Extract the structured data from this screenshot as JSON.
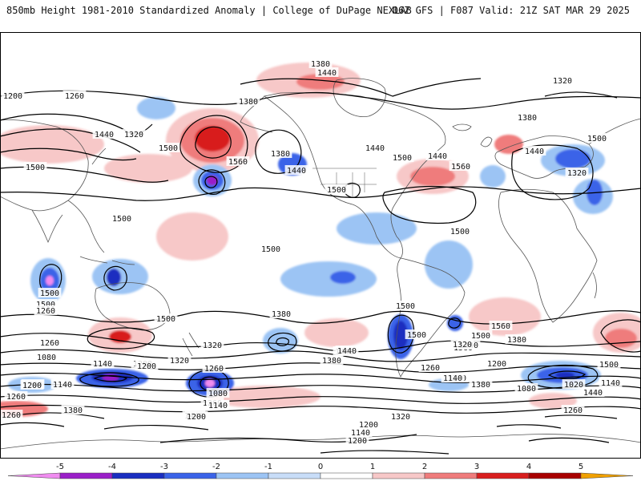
{
  "header": {
    "left": "850mb Height 1981-2010 Standardized Anomaly | College of DuPage NEXLAB",
    "right": "06Z GFS | F087 Valid: 21Z SAT MAR 29 2025"
  },
  "colorbar": {
    "ticks": [
      "-5",
      "-4",
      "-3",
      "-2",
      "-1",
      "0",
      "1",
      "2",
      "3",
      "4",
      "5"
    ],
    "colors": [
      "#f08cf0",
      "#9a1fc8",
      "#1a2ec0",
      "#3a63e8",
      "#9cc4f4",
      "#c8ddf8",
      "#ffffff",
      "#f7c8c8",
      "#ef7c7c",
      "#d81e1e",
      "#a80000",
      "#f0a000"
    ]
  },
  "contour_labels": [
    {
      "text": "1380"
    },
    {
      "text": "1440"
    },
    {
      "text": "1320"
    },
    {
      "text": "1200"
    },
    {
      "text": "1260"
    },
    {
      "text": "1380"
    },
    {
      "text": "1320"
    },
    {
      "text": "1440"
    },
    {
      "text": "1500"
    },
    {
      "text": "1560"
    },
    {
      "text": "1380"
    },
    {
      "text": "1440"
    },
    {
      "text": "1440"
    },
    {
      "text": "1500"
    },
    {
      "text": "1440"
    },
    {
      "text": "1560"
    },
    {
      "text": "1500"
    },
    {
      "text": "1380"
    },
    {
      "text": "1320"
    },
    {
      "text": "1500"
    },
    {
      "text": "1440"
    },
    {
      "text": "1500"
    },
    {
      "text": "1500"
    },
    {
      "text": "1500"
    },
    {
      "text": "1500"
    },
    {
      "text": "1500"
    },
    {
      "text": "1500"
    },
    {
      "text": "1500"
    },
    {
      "text": "1500"
    },
    {
      "text": "1560"
    },
    {
      "text": "1440"
    },
    {
      "text": "1500"
    },
    {
      "text": "1380"
    },
    {
      "text": "1260"
    },
    {
      "text": "1320"
    },
    {
      "text": "1260"
    },
    {
      "text": "1200"
    },
    {
      "text": "1140"
    },
    {
      "text": "1080"
    },
    {
      "text": "1140"
    },
    {
      "text": "1200"
    },
    {
      "text": "1320"
    },
    {
      "text": "1380"
    },
    {
      "text": "1440"
    },
    {
      "text": "1500"
    },
    {
      "text": "1560"
    },
    {
      "text": "1440"
    },
    {
      "text": "1380"
    },
    {
      "text": "1320"
    },
    {
      "text": "1260"
    },
    {
      "text": "1200"
    },
    {
      "text": "1260"
    },
    {
      "text": "1140"
    },
    {
      "text": "1080"
    },
    {
      "text": "1140"
    },
    {
      "text": "1200"
    },
    {
      "text": "1260"
    },
    {
      "text": "1140"
    },
    {
      "text": "1200"
    },
    {
      "text": "1080"
    },
    {
      "text": "1020"
    },
    {
      "text": "1140"
    },
    {
      "text": "1260"
    },
    {
      "text": "1380"
    },
    {
      "text": "1320"
    },
    {
      "text": "1260"
    },
    {
      "text": "1440"
    },
    {
      "text": "1200"
    },
    {
      "text": "1140"
    },
    {
      "text": "1200"
    },
    {
      "text": "1320"
    },
    {
      "text": "1380"
    },
    {
      "text": "1440"
    },
    {
      "text": "1500"
    },
    {
      "text": "1260"
    },
    {
      "text": "1200"
    },
    {
      "text": "1140"
    }
  ]
}
